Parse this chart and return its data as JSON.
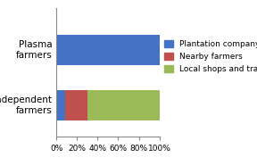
{
  "categories": [
    "Plasma\nfarmers",
    "Independent\nfarmers"
  ],
  "series": {
    "Plantation company": [
      1.0,
      0.08
    ],
    "Nearby farmers": [
      0.0,
      0.22
    ],
    "Local shops and traders": [
      0.0,
      0.7
    ]
  },
  "colors": {
    "Plantation company": "#4472C4",
    "Nearby farmers": "#C0504D",
    "Local shops and traders": "#9BBB59"
  },
  "xlim": [
    0,
    1.0
  ],
  "xticks": [
    0,
    0.2,
    0.4,
    0.6,
    0.8,
    1.0
  ],
  "xticklabels": [
    "0%",
    "20%",
    "40%",
    "60%",
    "80%",
    "100%"
  ],
  "background_color": "#FFFFFF",
  "legend_fontsize": 6.5,
  "tick_fontsize": 6.5,
  "ylabel_fontsize": 7.5,
  "bar_height": 0.55
}
